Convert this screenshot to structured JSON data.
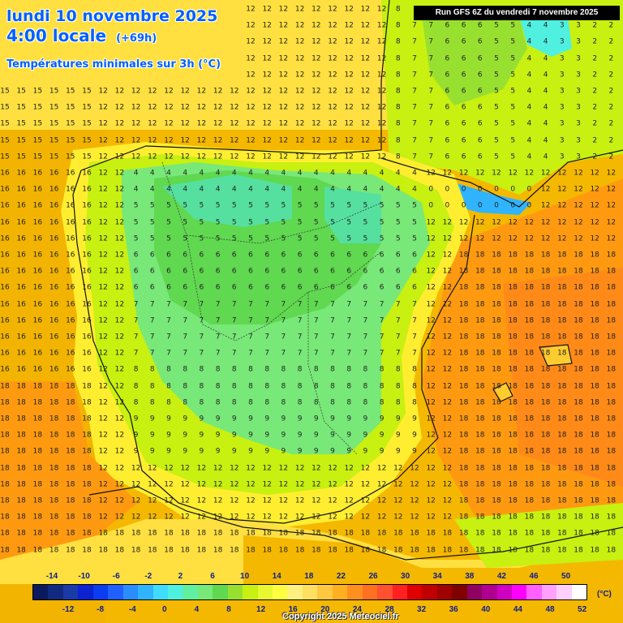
{
  "header": {
    "date_line": "lundi 10 novembre 2025",
    "time_line": "4:00 locale",
    "offset": "(+69h)",
    "parameter": "Températures minimales sur 3h (°C)",
    "run": "Run GFS 6Z du vendredi 7 novembre 2025"
  },
  "legend": {
    "unit": "(°C)",
    "top_ticks": [
      "-14",
      "-10",
      "-6",
      "-2",
      "2",
      "6",
      "10",
      "14",
      "18",
      "22",
      "26",
      "30",
      "34",
      "38",
      "42",
      "46",
      "50"
    ],
    "bottom_ticks": [
      "-12",
      "-8",
      "-4",
      "0",
      "4",
      "8",
      "12",
      "16",
      "20",
      "24",
      "28",
      "32",
      "36",
      "40",
      "44",
      "48",
      "52"
    ],
    "colors": [
      "#0b1a5e",
      "#102a80",
      "#1a3aa8",
      "#0a22d0",
      "#0a3cf0",
      "#2060ff",
      "#2a8cff",
      "#30b4ff",
      "#40dcff",
      "#50f0e0",
      "#60f0a0",
      "#78e878",
      "#60d850",
      "#98e030",
      "#c8f010",
      "#e8f830",
      "#ffff40",
      "#fff080",
      "#ffe060",
      "#ffc840",
      "#ffb020",
      "#ff9020",
      "#ff7020",
      "#ff5030",
      "#ff2020",
      "#e00000",
      "#c00000",
      "#a00000",
      "#800000",
      "#900060",
      "#b00090",
      "#d000c0",
      "#ff00ff",
      "#ff60ff",
      "#ffa0ff",
      "#ffd0ff",
      "#ffffff"
    ]
  },
  "credit": "Copyright 2025 Meteociel.fr"
}
